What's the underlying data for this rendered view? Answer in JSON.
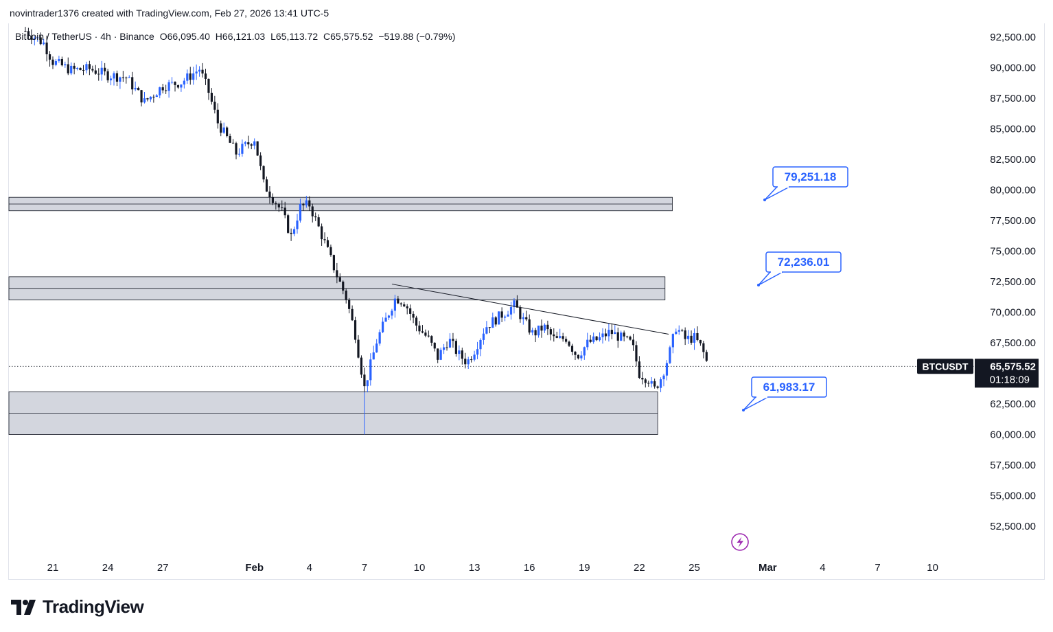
{
  "header": {
    "author_line": "novintrader1376 created with TradingView.com, Feb 27, 2026 13:41 UTC-5"
  },
  "legend": {
    "symbol": "Bitcoin / TetherUS · 4h · Binance",
    "open": "O66,095.40",
    "high": "H66,121.03",
    "low": "L65,113.72",
    "close": "C65,575.52",
    "change": "−519.88 (−0.79%)"
  },
  "footer": {
    "brand": "TradingView"
  },
  "colors": {
    "up": "#2962ff",
    "down": "#131722",
    "zone_fill": "#d1d4dc",
    "zone_stroke": "#131722",
    "callout": "#2962ff",
    "trendline": "#131722",
    "price_tag_bg": "#131722"
  },
  "chart_data": {
    "type": "candlestick",
    "timeframe": "4h",
    "y_axis": {
      "range": [
        50400,
        94000
      ],
      "ticks": [
        "92,500.00",
        "90,000.00",
        "87,500.00",
        "85,000.00",
        "82,500.00",
        "80,000.00",
        "77,500.00",
        "75,000.00",
        "72,500.00",
        "70,000.00",
        "67,500.00",
        "62,500.00",
        "60,000.00",
        "57,500.00",
        "55,000.00",
        "52,500.00"
      ],
      "tick_values": [
        92500,
        90000,
        87500,
        85000,
        82500,
        80000,
        77500,
        75000,
        72500,
        70000,
        67500,
        62500,
        60000,
        57500,
        55000,
        52500
      ]
    },
    "x_axis": {
      "labels": [
        "21",
        "24",
        "27",
        "Feb",
        "4",
        "7",
        "10",
        "13",
        "16",
        "19",
        "22",
        "25",
        "Mar",
        "4",
        "7",
        "10"
      ],
      "label_day_index": [
        20,
        23,
        26,
        31,
        34,
        37,
        40,
        43,
        46,
        49,
        52,
        55,
        59,
        62,
        65,
        68
      ],
      "start_day_index": 18.5,
      "end_day_index": 57.2
    },
    "current_price": {
      "symbol": "BTCUSDT",
      "value": "65,575.52",
      "countdown": "01:18:09",
      "price": 65575.52
    },
    "zones": [
      {
        "low": 78300,
        "high": 79400,
        "mid": 78850,
        "day_start": 18.5,
        "day_end": 53.8
      },
      {
        "low": 71000,
        "high": 72900,
        "mid": 71950,
        "day_start": 18.5,
        "day_end": 53.4
      },
      {
        "low": 60000,
        "high": 63500,
        "mid": 61750,
        "day_start": 18.5,
        "day_end": 53.0
      }
    ],
    "annotations": [
      {
        "label": "79,251.18",
        "price": 79251.18
      },
      {
        "label": "72,236.01",
        "price": 72236.01
      },
      {
        "label": "61,983.17",
        "price": 61983.17
      }
    ],
    "trendline": {
      "from": {
        "day": 38.5,
        "price": 72300
      },
      "to": {
        "day": 53.6,
        "price": 68200
      }
    },
    "anchors": [
      [
        18.5,
        93000
      ],
      [
        19.5,
        92000
      ],
      [
        20.0,
        90500
      ],
      [
        21.0,
        89800
      ],
      [
        22.0,
        89900
      ],
      [
        23.0,
        89400
      ],
      [
        24.0,
        89200
      ],
      [
        25.0,
        87200
      ],
      [
        26.0,
        88500
      ],
      [
        27.0,
        88800
      ],
      [
        28.0,
        89900
      ],
      [
        28.5,
        88000
      ],
      [
        29.0,
        85500
      ],
      [
        30.0,
        83000
      ],
      [
        31.0,
        84200
      ],
      [
        31.5,
        80500
      ],
      [
        32.5,
        78200
      ],
      [
        33.0,
        76200
      ],
      [
        33.5,
        78600
      ],
      [
        34.0,
        78800
      ],
      [
        34.8,
        75800
      ],
      [
        35.5,
        73000
      ],
      [
        36.0,
        71200
      ],
      [
        36.5,
        68200
      ],
      [
        37.0,
        63800
      ],
      [
        37.3,
        65500
      ],
      [
        37.7,
        67800
      ],
      [
        38.2,
        69500
      ],
      [
        38.7,
        71200
      ],
      [
        39.2,
        70800
      ],
      [
        39.8,
        69000
      ],
      [
        40.5,
        67800
      ],
      [
        41.0,
        66300
      ],
      [
        41.6,
        67800
      ],
      [
        42.1,
        66600
      ],
      [
        42.6,
        65900
      ],
      [
        43.0,
        66900
      ],
      [
        43.6,
        68800
      ],
      [
        44.5,
        69800
      ],
      [
        45.2,
        70600
      ],
      [
        45.6,
        69500
      ],
      [
        46.2,
        68200
      ],
      [
        46.8,
        68800
      ],
      [
        47.4,
        67700
      ],
      [
        48.0,
        67900
      ],
      [
        48.6,
        66400
      ],
      [
        49.2,
        67500
      ],
      [
        49.8,
        67800
      ],
      [
        50.4,
        68400
      ],
      [
        51.0,
        67900
      ],
      [
        51.6,
        67400
      ],
      [
        52.0,
        65000
      ],
      [
        52.5,
        64500
      ],
      [
        52.8,
        63600
      ],
      [
        53.2,
        64700
      ],
      [
        53.6,
        66400
      ],
      [
        54.0,
        68800
      ],
      [
        54.5,
        67800
      ],
      [
        55.0,
        67900
      ],
      [
        55.4,
        67100
      ],
      [
        55.8,
        65400
      ]
    ]
  }
}
